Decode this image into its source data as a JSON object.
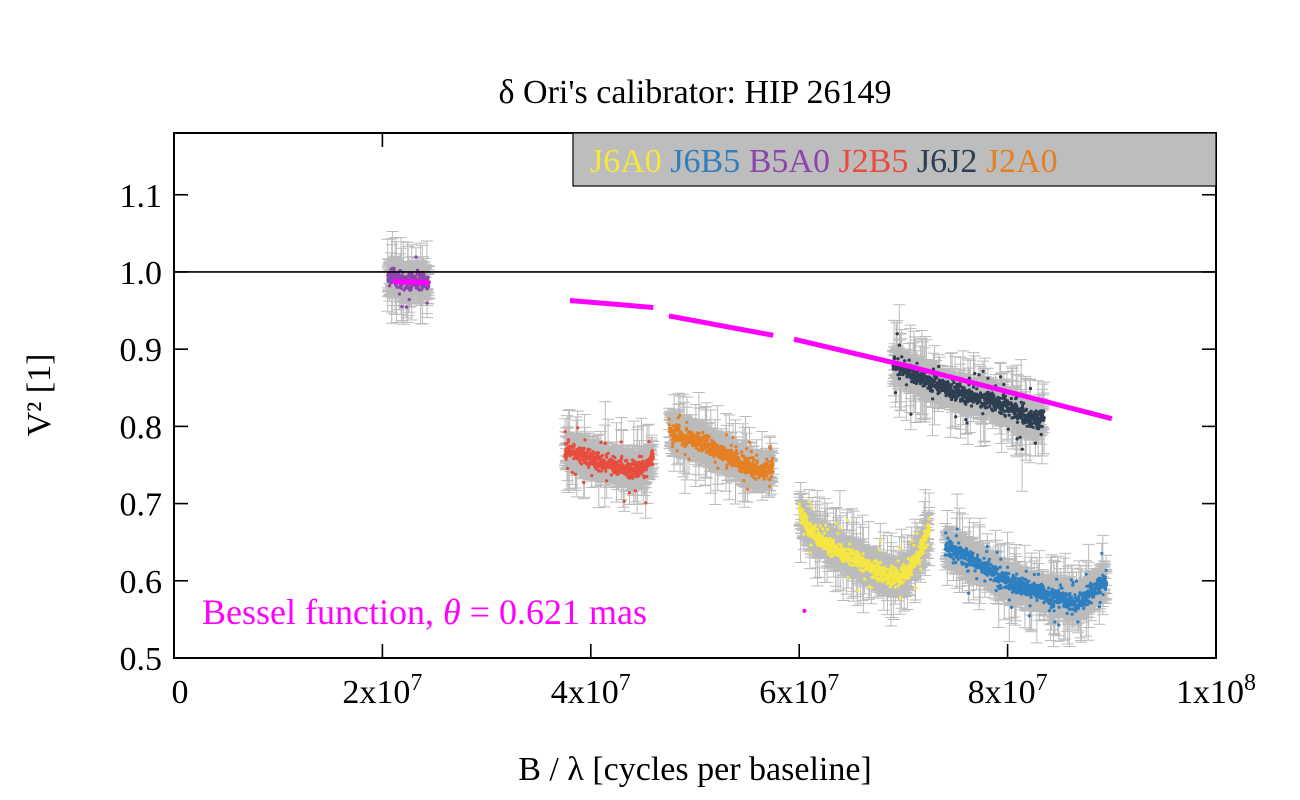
{
  "chart_data": {
    "type": "scatter",
    "title": "δ Ori's calibrator: HIP 26149",
    "xlabel": "B / λ [cycles per baseline]",
    "ylabel": "V² [1]",
    "xlim": [
      0,
      100000000
    ],
    "ylim": [
      0.5,
      1.18
    ],
    "grid": false,
    "legend_placement": "top-right",
    "reference_line": 1.0,
    "x_ticks": [
      {
        "value": 0,
        "label": "0"
      },
      {
        "value": 20000000,
        "base": "2x10",
        "exp": "7"
      },
      {
        "value": 40000000,
        "base": "4x10",
        "exp": "7"
      },
      {
        "value": 60000000,
        "base": "6x10",
        "exp": "7"
      },
      {
        "value": 80000000,
        "base": "8x10",
        "exp": "7"
      },
      {
        "value": 100000000,
        "base": "1x10",
        "exp": "8"
      }
    ],
    "y_ticks": [
      {
        "value": 0.5,
        "label": "0.5"
      },
      {
        "value": 0.6,
        "label": "0.6"
      },
      {
        "value": 0.7,
        "label": "0.7"
      },
      {
        "value": 0.8,
        "label": "0.8"
      },
      {
        "value": 0.9,
        "label": "0.9"
      },
      {
        "value": 1.0,
        "label": "1.0"
      },
      {
        "value": 1.1,
        "label": "1.1"
      }
    ],
    "series": [
      {
        "name": "J6A0",
        "color": "#f5e642",
        "segments": [
          {
            "x": [
              60000000,
              61000000,
              63000000,
              65000000,
              67000000,
              69000000,
              70500000,
              71500000,
              72500000
            ],
            "y": [
              0.69,
              0.665,
              0.645,
              0.63,
              0.615,
              0.605,
              0.61,
              0.635,
              0.67
            ]
          }
        ]
      },
      {
        "name": "J6B5",
        "color": "#2e7fc0",
        "segments": [
          {
            "x": [
              74000000,
              75500000,
              77000000,
              79000000,
              81000000,
              83000000,
              85000000,
              86500000,
              88000000,
              89500000
            ],
            "y": [
              0.645,
              0.635,
              0.625,
              0.605,
              0.595,
              0.585,
              0.578,
              0.57,
              0.585,
              0.6
            ]
          }
        ]
      },
      {
        "name": "B5A0",
        "color": "#8e44ad",
        "segments": [
          {
            "x": [
              20500000,
              21500000,
              22500000,
              23500000,
              24500000
            ],
            "y": [
              0.995,
              0.99,
              0.985,
              0.99,
              0.985
            ]
          }
        ]
      },
      {
        "name": "J2B5",
        "color": "#e74c3c",
        "segments": [
          {
            "x": [
              37500000,
              39000000,
              40500000,
              42000000,
              43500000,
              45000000,
              46000000
            ],
            "y": [
              0.77,
              0.765,
              0.755,
              0.75,
              0.745,
              0.745,
              0.76
            ]
          }
        ]
      },
      {
        "name": "J6J2",
        "color": "#2c3e50",
        "segments": [
          {
            "x": [
              69000000,
              70500000,
              72000000,
              74000000,
              76000000,
              78000000,
              80000000,
              82000000,
              83500000
            ],
            "y": [
              0.88,
              0.87,
              0.86,
              0.85,
              0.84,
              0.835,
              0.825,
              0.81,
              0.81
            ]
          }
        ]
      },
      {
        "name": "J2A0",
        "color": "#e67e22",
        "segments": [
          {
            "x": [
              47500000,
              49000000,
              50500000,
              52000000,
              53500000,
              55000000,
              56500000,
              57500000
            ],
            "y": [
              0.795,
              0.785,
              0.78,
              0.77,
              0.76,
              0.75,
              0.74,
              0.75
            ]
          }
        ]
      }
    ],
    "model": {
      "name": "Bessel function",
      "color": "#ff00ff",
      "segments": [
        {
          "x": [
            21000000,
            24500000
          ],
          "y": [
            0.988,
            0.986
          ]
        },
        {
          "x": [
            38000000,
            46000000
          ],
          "y": [
            0.963,
            0.954
          ]
        },
        {
          "x": [
            47500000,
            57500000
          ],
          "y": [
            0.943,
            0.918
          ]
        },
        {
          "x": [
            59500000,
            70500000
          ],
          "y": [
            0.913,
            0.878
          ]
        },
        {
          "x": [
            70500000,
            90000000
          ],
          "y": [
            0.878,
            0.81
          ]
        }
      ],
      "outlier_points": [
        {
          "x": 60500000,
          "y": 0.561
        }
      ]
    },
    "annotation": {
      "prefix": "Bessel function, ",
      "symbol": "θ",
      "suffix": " = 0.621 mas"
    }
  }
}
